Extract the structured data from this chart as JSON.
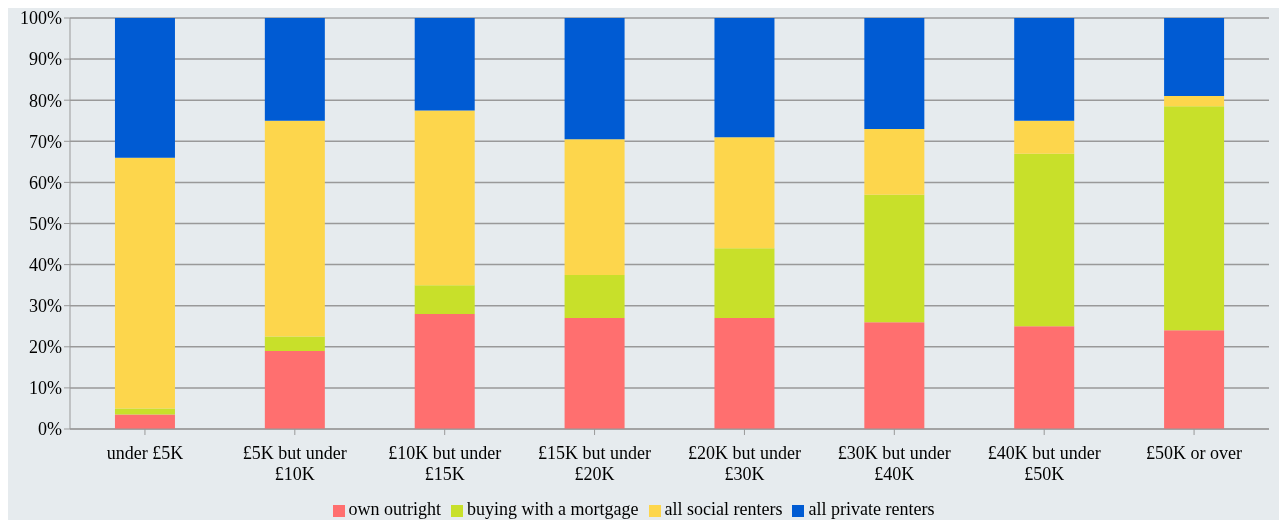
{
  "chart_data": {
    "type": "bar",
    "stacked": true,
    "categories": [
      "under £5K",
      "£5K but under £10K",
      "£10K but under £15K",
      "£15K but under £20K",
      "£20K but under £30K",
      "£30K but under £40K",
      "£40K but under £50K",
      "£50K or over"
    ],
    "series": [
      {
        "name": "own outright",
        "color": "#ff6f6f",
        "values": [
          3.5,
          19,
          28,
          27,
          27,
          26,
          25,
          24
        ]
      },
      {
        "name": "buying with a mortgage",
        "color": "#c8e02a",
        "values": [
          1.5,
          3.5,
          7,
          10.5,
          17,
          31,
          42,
          54.5
        ]
      },
      {
        "name": "all social renters",
        "color": "#fdd64c",
        "values": [
          61,
          52.5,
          42.5,
          33,
          27,
          16,
          8,
          2.5
        ]
      },
      {
        "name": "all private renters",
        "color": "#005bd3",
        "values": [
          34,
          25,
          22.5,
          29.5,
          29,
          27,
          25,
          19
        ]
      }
    ],
    "ylim": [
      0,
      100
    ],
    "yticks": [
      {
        "value": 0,
        "label": "0%"
      },
      {
        "value": 10,
        "label": "10%"
      },
      {
        "value": 20,
        "label": "20%"
      },
      {
        "value": 30,
        "label": "30%"
      },
      {
        "value": 40,
        "label": "40%"
      },
      {
        "value": 50,
        "label": "50%"
      },
      {
        "value": 60,
        "label": "60%"
      },
      {
        "value": 70,
        "label": "70%"
      },
      {
        "value": 80,
        "label": "80%"
      },
      {
        "value": 90,
        "label": "90%"
      },
      {
        "value": 100,
        "label": "100%"
      }
    ],
    "grid": "y",
    "legend": "bottom"
  }
}
